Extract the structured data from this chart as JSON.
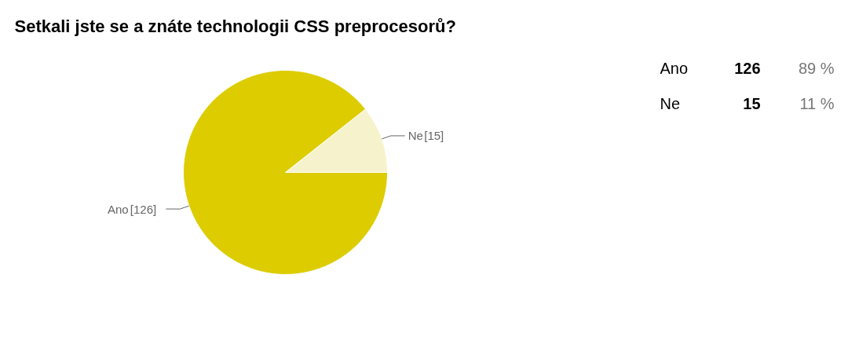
{
  "chart_data": [
    {
      "type": "pie",
      "title": "Setkali jste se a znáte technologii CSS preprocesorů?",
      "categories": [
        "Ano",
        "Ne"
      ],
      "values": [
        126,
        15
      ],
      "colors": [
        "#dccc00",
        "#f6f3cc"
      ],
      "value_labels": [
        "[126]",
        "[15]"
      ]
    },
    {
      "type": "other",
      "annotations": [
        "Ano",
        "126",
        "89 %",
        "Ne",
        "15",
        "11 %"
      ]
    }
  ]
}
